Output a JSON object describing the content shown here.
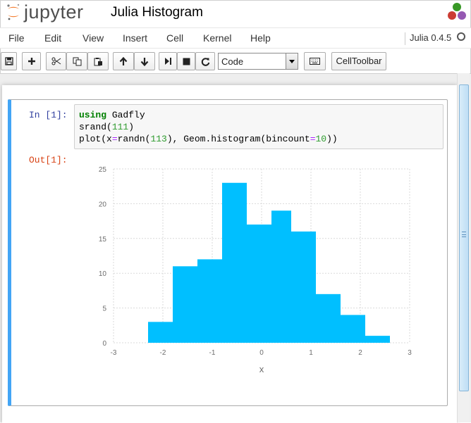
{
  "header": {
    "logo_text": "jupyter",
    "notebook_title": "Julia Histogram"
  },
  "menubar": {
    "items": [
      "File",
      "Edit",
      "View",
      "Insert",
      "Cell",
      "Kernel",
      "Help"
    ],
    "kernel_name": "Julia 0.4.5"
  },
  "toolbar": {
    "buttons": [
      "save-icon",
      "plus-icon",
      "cut-icon",
      "copy-icon",
      "paste-icon",
      "arrow-up-icon",
      "arrow-down-icon",
      "step-icon",
      "stop-icon",
      "restart-icon"
    ],
    "cell_type": "Code",
    "keyboard_icon": "keyboard-icon",
    "celltoolbar_label": "CellToolbar"
  },
  "cell": {
    "in_prompt": "In [1]:",
    "out_prompt": "Out[1]:",
    "code": {
      "line1_kw": "using",
      "line1_rest": " Gadfly",
      "line2_fn": "srand(",
      "line2_num": "111",
      "line2_end": ")",
      "line3_a": "plot(x",
      "line3_eq1": "=",
      "line3_b": "randn(",
      "line3_num1": "113",
      "line3_c": "), Geom.histogram(bincount",
      "line3_eq2": "=",
      "line3_num2": "10",
      "line3_d": "))"
    }
  },
  "chart_data": {
    "type": "bar",
    "title": "",
    "xlabel": "x",
    "ylabel": "",
    "xlim": [
      -3,
      3
    ],
    "ylim": [
      0,
      25
    ],
    "x_ticks": [
      "-3",
      "-2",
      "-1",
      "0",
      "1",
      "2",
      "3"
    ],
    "y_ticks": [
      "0",
      "5",
      "10",
      "15",
      "20",
      "25"
    ],
    "bins": [
      {
        "x0": -2.3,
        "x1": -1.8,
        "count": 3
      },
      {
        "x0": -1.8,
        "x1": -1.3,
        "count": 11
      },
      {
        "x0": -1.3,
        "x1": -0.8,
        "count": 12
      },
      {
        "x0": -0.8,
        "x1": -0.3,
        "count": 23
      },
      {
        "x0": -0.3,
        "x1": 0.2,
        "count": 17
      },
      {
        "x0": 0.2,
        "x1": 0.6,
        "count": 19
      },
      {
        "x0": 0.6,
        "x1": 1.1,
        "count": 16
      },
      {
        "x0": 1.1,
        "x1": 1.6,
        "count": 7
      },
      {
        "x0": 1.6,
        "x1": 2.1,
        "count": 4
      },
      {
        "x0": 2.1,
        "x1": 2.6,
        "count": 1
      }
    ],
    "grid": true,
    "bar_color": "#00bfff"
  }
}
